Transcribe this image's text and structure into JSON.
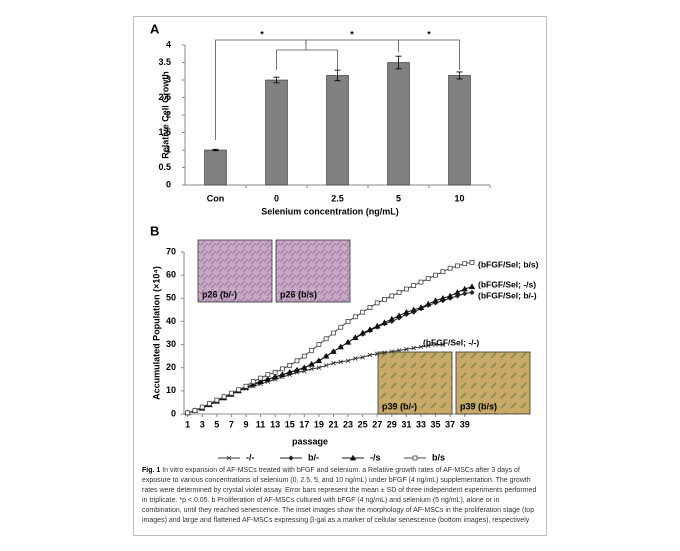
{
  "chart_data": [
    {
      "type": "bar",
      "panel": "A",
      "y_label": "Relative Cell Growth",
      "x_label": "Selenium concentration (ng/mL)",
      "categories": [
        "Con",
        "0",
        "2.5",
        "5",
        "10"
      ],
      "values": [
        1.0,
        3.0,
        3.13,
        3.5,
        3.13
      ],
      "errors": [
        0.02,
        0.08,
        0.15,
        0.18,
        0.1
      ],
      "color": "#808080",
      "ylim": [
        0,
        4
      ],
      "yticks": [
        0,
        0.5,
        1,
        1.5,
        2,
        2.5,
        3,
        3.5,
        4
      ],
      "annotations": [
        "*",
        "*",
        "*"
      ]
    },
    {
      "type": "line",
      "panel": "B",
      "y_label": "Accumulated  Population (×10⁴)",
      "x_label": "passage",
      "x": [
        1,
        2,
        3,
        4,
        5,
        6,
        7,
        8,
        9,
        10,
        11,
        12,
        13,
        14,
        15,
        16,
        17,
        18,
        19,
        20,
        21,
        22,
        23,
        24,
        25,
        26,
        27,
        28,
        29,
        30,
        31,
        32,
        33,
        34,
        35,
        36,
        37,
        38,
        39,
        40
      ],
      "series": [
        {
          "name": "-/-",
          "color": "#333333",
          "marker": "x",
          "values": [
            0.5,
            1.5,
            2.5,
            4,
            5.5,
            7,
            8.5,
            10,
            11,
            12,
            13,
            14,
            15,
            16,
            17,
            18,
            18.5,
            19.5,
            20,
            21,
            22,
            22.5,
            23,
            24,
            24.5,
            25.5,
            26,
            26.5,
            27,
            27.5,
            28,
            28.5,
            29,
            29.5,
            30,
            30,
            null,
            null,
            null,
            null
          ]
        },
        {
          "name": "b/-",
          "color": "#222222",
          "marker": "diamond",
          "values": [
            0.5,
            1.5,
            2.5,
            4,
            5.5,
            7,
            8.5,
            10,
            11.5,
            12.5,
            14,
            15,
            16,
            17,
            18,
            19,
            20,
            21.5,
            23,
            25,
            27,
            29,
            31,
            33,
            34.5,
            36,
            37.5,
            39,
            40,
            41.5,
            43,
            44,
            45.5,
            47,
            48,
            49,
            50,
            51,
            52,
            52.5
          ]
        },
        {
          "name": "-/s",
          "color": "#111111",
          "marker": "triangle",
          "values": [
            0.5,
            1.5,
            2.5,
            4,
            5.5,
            7,
            8.5,
            10,
            11.5,
            13,
            14,
            15,
            16,
            17,
            18,
            19,
            20,
            21.5,
            23,
            25,
            27,
            29,
            31,
            33,
            35,
            36.5,
            38,
            39.5,
            41,
            42.5,
            44,
            45,
            46,
            47.5,
            49,
            50,
            51,
            52.5,
            54,
            55
          ]
        },
        {
          "name": "b/s",
          "color": "#444444",
          "marker": "square",
          "values": [
            0.5,
            1.5,
            3,
            4.5,
            6,
            7.5,
            9,
            10.5,
            12,
            14,
            15.5,
            17,
            18,
            19.5,
            21,
            23,
            25,
            27.5,
            30,
            32.5,
            35,
            37.5,
            40,
            42,
            44,
            46,
            48,
            49.5,
            51,
            52.5,
            54,
            55.5,
            57,
            58.5,
            60,
            61.5,
            63,
            64,
            65,
            65.5
          ]
        }
      ],
      "end_labels": [
        "(bFGF/Sel; -/-)",
        "(bFGF/Sel; b/-)",
        "(bFGF/Sel; -/s)",
        "(bFGF/Sel; b/s)"
      ],
      "insets": [
        "p26 (b/-)",
        "p26 (b/s)",
        "p39 (b/-)",
        "p39 (b/s)"
      ],
      "xlim": [
        0.5,
        40
      ],
      "xticks": [
        1,
        3,
        5,
        7,
        9,
        11,
        13,
        15,
        17,
        19,
        21,
        23,
        25,
        27,
        29,
        31,
        33,
        35,
        37,
        39
      ],
      "ylim": [
        0,
        70
      ],
      "yticks": [
        0,
        10,
        20,
        30,
        40,
        50,
        60,
        70
      ],
      "legend": "bottom"
    }
  ],
  "caption": {
    "label": "Fig. 1",
    "text": "In vitro expansion of AF-MSCs treated with bFGF and selenium. a Relative growth rates of AF-MSCs after 3 days of exposure to various concentrations of selenium (0, 2.5, 5, and 10 ng/mL) under bFGF (4 ng/mL) supplementation. The growth rates were determined by crystal violet assay. Error bars represent the mean ± SD of three independent experiments performed in triplicate. *p < 0.05. b Proliferation of AF-MSCs cultured with bFGF (4 ng/mL) and selenium (5 ng/mL), alone or in combination, until they reached senescence. The inset images show the morphology of AF-MSCs in the proliferation stage (top images) and large and flattened AF-MSCs expressing β-gal as a marker of cellular senescence (bottom images), respectively"
  }
}
